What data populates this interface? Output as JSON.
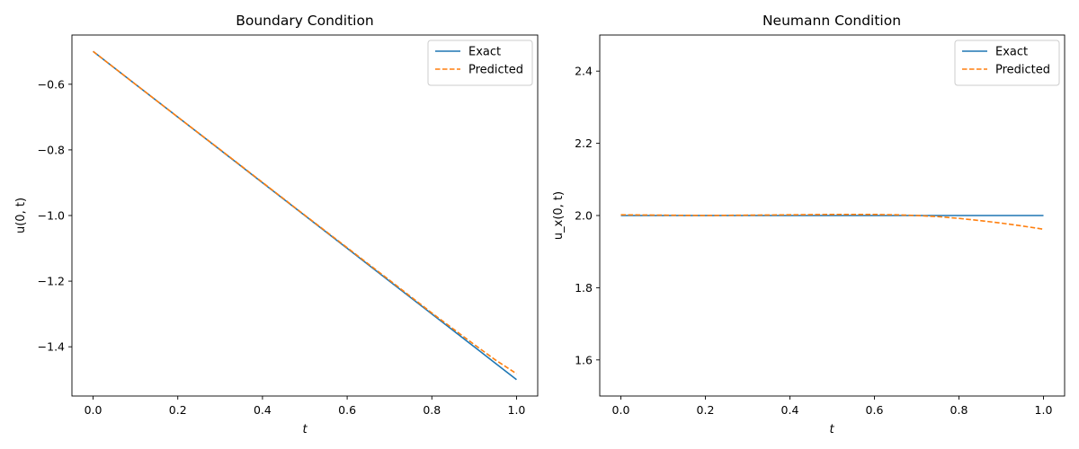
{
  "chart_data": [
    {
      "type": "line",
      "title": "Boundary Condition",
      "xlabel": "t",
      "ylabel": "u(0, t)",
      "xlim": [
        -0.05,
        1.05
      ],
      "ylim": [
        -1.55,
        -0.45
      ],
      "xticks": [
        0.0,
        0.2,
        0.4,
        0.6,
        0.8,
        1.0
      ],
      "xtick_labels": [
        "0.0",
        "0.2",
        "0.4",
        "0.6",
        "0.8",
        "1.0"
      ],
      "yticks": [
        -1.4,
        -1.2,
        -1.0,
        -0.8,
        -0.6
      ],
      "ytick_labels": [
        "−1.4",
        "−1.2",
        "−1.0",
        "−0.8",
        "−0.6"
      ],
      "legend": "top-right",
      "grid": false,
      "series": [
        {
          "name": "Exact",
          "color": "#1f77b4",
          "style": "solid",
          "x": [
            0.0,
            0.1,
            0.2,
            0.3,
            0.4,
            0.5,
            0.6,
            0.7,
            0.8,
            0.85,
            0.9,
            0.95,
            1.0
          ],
          "y": [
            -0.5,
            -0.6,
            -0.7,
            -0.8,
            -0.9,
            -1.0,
            -1.1,
            -1.2,
            -1.3,
            -1.35,
            -1.4,
            -1.45,
            -1.5
          ]
        },
        {
          "name": "Predicted",
          "color": "#ff7f0e",
          "style": "dashed",
          "x": [
            0.0,
            0.1,
            0.2,
            0.3,
            0.4,
            0.5,
            0.6,
            0.7,
            0.8,
            0.85,
            0.9,
            0.95,
            1.0
          ],
          "y": [
            -0.5,
            -0.6,
            -0.7,
            -0.799,
            -0.899,
            -0.999,
            -1.098,
            -1.197,
            -1.297,
            -1.345,
            -1.393,
            -1.44,
            -1.482
          ]
        }
      ]
    },
    {
      "type": "line",
      "title": "Neumann Condition",
      "xlabel": "t",
      "ylabel": "u_x(0, t)",
      "xlim": [
        -0.05,
        1.05
      ],
      "ylim": [
        1.5,
        2.5
      ],
      "xticks": [
        0.0,
        0.2,
        0.4,
        0.6,
        0.8,
        1.0
      ],
      "xtick_labels": [
        "0.0",
        "0.2",
        "0.4",
        "0.6",
        "0.8",
        "1.0"
      ],
      "yticks": [
        1.6,
        1.8,
        2.0,
        2.2,
        2.4
      ],
      "ytick_labels": [
        "1.6",
        "1.8",
        "2.0",
        "2.2",
        "2.4"
      ],
      "legend": "top-right",
      "grid": false,
      "series": [
        {
          "name": "Exact",
          "color": "#1f77b4",
          "style": "solid",
          "x": [
            0.0,
            0.1,
            0.2,
            0.3,
            0.4,
            0.5,
            0.6,
            0.7,
            0.8,
            0.9,
            1.0
          ],
          "y": [
            2.0,
            2.0,
            2.0,
            2.0,
            2.0,
            2.0,
            2.0,
            2.0,
            2.0,
            2.0,
            2.0
          ]
        },
        {
          "name": "Predicted",
          "color": "#ff7f0e",
          "style": "dashed",
          "x": [
            0.0,
            0.1,
            0.2,
            0.3,
            0.4,
            0.5,
            0.6,
            0.65,
            0.7,
            0.75,
            0.8,
            0.85,
            0.9,
            0.95,
            1.0
          ],
          "y": [
            2.002,
            2.001,
            2.0,
            2.001,
            2.002,
            2.003,
            2.003,
            2.002,
            2.0,
            1.997,
            1.992,
            1.986,
            1.979,
            1.971,
            1.962
          ]
        }
      ]
    }
  ]
}
